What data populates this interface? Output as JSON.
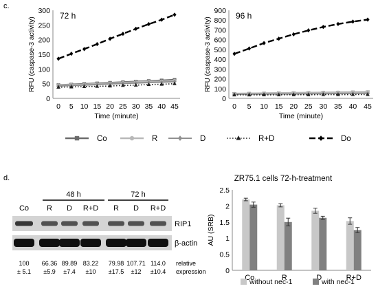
{
  "panel_labels": {
    "c": "c.",
    "d": "d."
  },
  "chart_data": [
    {
      "type": "line",
      "title": "72 h",
      "xlabel": "Time (minute)",
      "ylabel": "RFU (caspase-3 activity)",
      "x": [
        0,
        5,
        10,
        15,
        20,
        25,
        30,
        35,
        40,
        45
      ],
      "ylim": [
        0,
        300
      ],
      "yticks": [
        0,
        50,
        100,
        150,
        200,
        250,
        300
      ],
      "grid": false,
      "series": [
        {
          "name": "Co",
          "color": "#6b6b6b",
          "values": [
            45,
            47,
            49,
            51,
            53,
            55,
            57,
            59,
            61,
            63
          ]
        },
        {
          "name": "R",
          "color": "#b8b8b8",
          "values": [
            44,
            46,
            47,
            49,
            51,
            53,
            55,
            57,
            58,
            60
          ]
        },
        {
          "name": "D",
          "color": "#909090",
          "values": [
            42,
            44,
            45,
            47,
            49,
            51,
            52,
            54,
            55,
            57
          ]
        },
        {
          "name": "R+D",
          "color": "#222222",
          "values": [
            38,
            39,
            40,
            41,
            42,
            44,
            45,
            47,
            48,
            50
          ]
        },
        {
          "name": "Do",
          "color": "#000000",
          "values": [
            135,
            152,
            168,
            185,
            203,
            220,
            237,
            253,
            268,
            285
          ]
        }
      ]
    },
    {
      "type": "line",
      "title": "96 h",
      "xlabel": "Time (minute)",
      "ylabel": "RFU (caspase-3 activity)",
      "x": [
        0,
        5,
        10,
        15,
        20,
        25,
        30,
        35,
        40,
        45
      ],
      "ylim": [
        0,
        900
      ],
      "yticks": [
        0,
        100,
        200,
        300,
        400,
        500,
        600,
        700,
        800,
        900
      ],
      "grid": false,
      "series": [
        {
          "name": "Co",
          "color": "#6b6b6b",
          "values": [
            45,
            47,
            49,
            51,
            53,
            55,
            57,
            59,
            61,
            63
          ]
        },
        {
          "name": "R",
          "color": "#b8b8b8",
          "values": [
            48,
            50,
            52,
            54,
            56,
            58,
            60,
            62,
            64,
            66
          ]
        },
        {
          "name": "D",
          "color": "#909090",
          "values": [
            42,
            43,
            44,
            45,
            46,
            47,
            48,
            49,
            50,
            51
          ]
        },
        {
          "name": "R+D",
          "color": "#222222",
          "values": [
            35,
            35,
            36,
            36,
            37,
            37,
            38,
            38,
            39,
            39
          ]
        },
        {
          "name": "Do",
          "color": "#000000",
          "values": [
            455,
            510,
            565,
            610,
            655,
            695,
            730,
            760,
            785,
            805
          ]
        }
      ]
    },
    {
      "type": "bar",
      "title": "ZR75.1 cells 72-h-treatment",
      "ylabel": "AU (SRB)",
      "categories": [
        "Co",
        "R",
        "D",
        "R+D"
      ],
      "ylim": [
        0,
        2.5
      ],
      "yticks": [
        "0",
        "0.5",
        "1",
        "1.5",
        "2",
        "2.5"
      ],
      "legend_position": "bottom",
      "series": [
        {
          "name": "without nec-1",
          "color": "#c8c8c8",
          "values": [
            2.2,
            2.02,
            1.85,
            1.53
          ],
          "errors": [
            0.04,
            0.05,
            0.08,
            0.1
          ]
        },
        {
          "name": "with nec-1",
          "color": "#808080",
          "values": [
            2.04,
            1.5,
            1.63,
            1.25
          ],
          "errors": [
            0.08,
            0.12,
            0.05,
            0.08
          ]
        }
      ]
    }
  ],
  "blot": {
    "group_labels": [
      "48 h",
      "72 h"
    ],
    "lanes": [
      "Co",
      "R",
      "D",
      "R+D",
      "R",
      "D",
      "R+D"
    ],
    "rows": [
      "RIP1",
      "β-actin"
    ],
    "intensity": [
      [
        "100",
        "66.36",
        "89.89",
        "83.22",
        "79.98",
        "107.71",
        "114.0"
      ],
      [
        "± 5.1",
        "±5.9",
        "±7.4",
        "±10",
        "±17.5",
        "±12",
        "±10.4"
      ]
    ],
    "intensity_label": [
      "relative",
      "expression"
    ]
  }
}
